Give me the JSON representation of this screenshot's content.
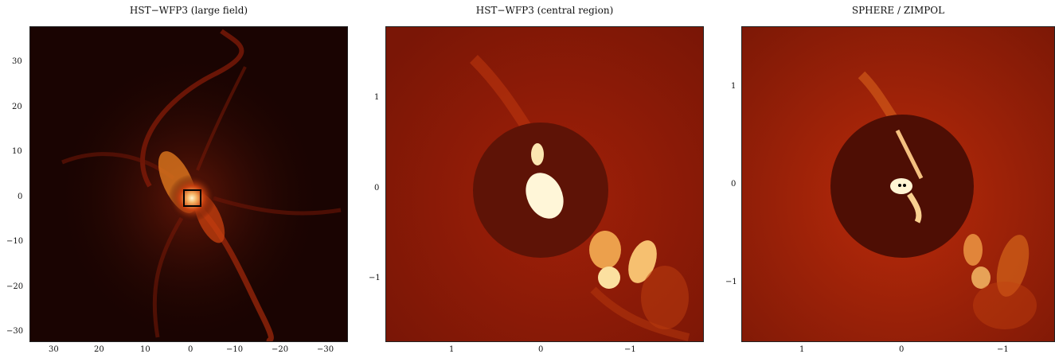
{
  "panels": [
    {
      "title": "HST−WFP3 (large field)",
      "x_ticks": [
        "30",
        "20",
        "10",
        "0",
        "−10",
        "−20",
        "−30"
      ],
      "y_ticks": [
        "30",
        "20",
        "10",
        "0",
        "−10",
        "−20",
        "−30"
      ],
      "colormap": "black-red-yellow-white"
    },
    {
      "title": "HST−WFP3 (central region)",
      "x_ticks": [
        "1",
        "0",
        "−1"
      ],
      "y_ticks": [
        "1",
        "0",
        "−1"
      ],
      "colormap": "red-yellow-white"
    },
    {
      "title": "SPHERE / ZIMPOL",
      "x_ticks": [
        "1",
        "0",
        "−1"
      ],
      "y_ticks": [
        "1",
        "0",
        "−1"
      ],
      "colormap": "red-yellow-white"
    }
  ],
  "colors": {
    "background_dark": "#1a0402",
    "nebula_red": "#b8200a",
    "panel_red": "#8a1a08",
    "mask_dark": "#5a1206",
    "highlight": "#fff6d0"
  }
}
